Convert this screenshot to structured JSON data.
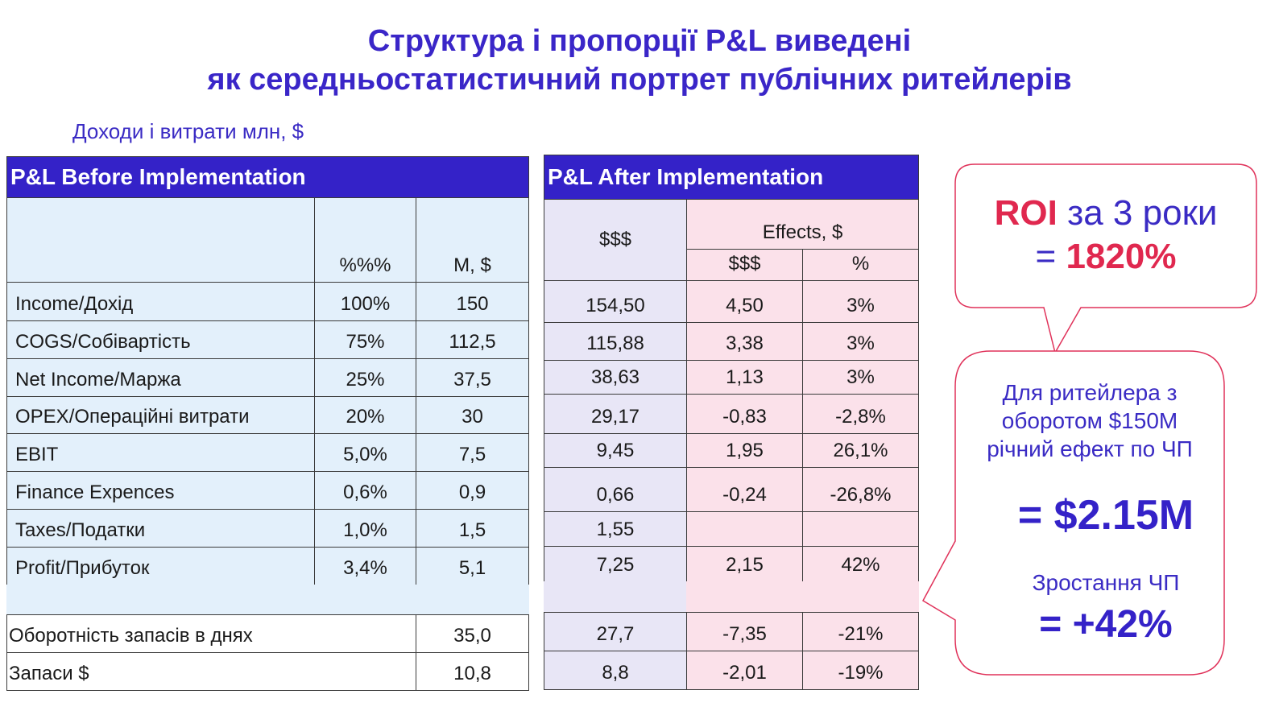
{
  "title": [
    "Структура і пропорції P&L виведені",
    "як середньостатистичний портрет публічних ритейлерів"
  ],
  "subtitle": "Доходи і витрати млн, $",
  "before": {
    "title": "P&L Before Implementation",
    "headers": [
      "%%%",
      "M, $"
    ],
    "rows": [
      [
        "Income/Дохід",
        "100%",
        "150"
      ],
      [
        "COGS/Собівартість",
        "75%",
        "112,5"
      ],
      [
        "Net Income/Маржа",
        "25%",
        "37,5"
      ],
      [
        "OPEX/Операційні витрати",
        "20%",
        "30"
      ],
      [
        "EBIT",
        "5,0%",
        "7,5"
      ],
      [
        "Finance Expences",
        "0,6%",
        "0,9"
      ],
      [
        "Taxes/Податки",
        "1,0%",
        "1,5"
      ],
      [
        "Profit/Прибуток",
        "3,4%",
        "5,1"
      ]
    ],
    "extra_rows": [
      [
        "Оборотність запасів в днях",
        "35,0"
      ],
      [
        "Запаси $",
        "10,8"
      ]
    ]
  },
  "after": {
    "title": "P&L After Implementation",
    "header_main": "$$$",
    "header_effects": "Effects, $",
    "headers": [
      "$$$",
      "%"
    ],
    "rows": [
      [
        "154,50",
        "4,50",
        "3%"
      ],
      [
        "115,88",
        "3,38",
        "3%"
      ],
      [
        "38,63",
        "1,13",
        "3%"
      ],
      [
        "29,17",
        "-0,83",
        "-2,8%"
      ],
      [
        "9,45",
        "1,95",
        "26,1%"
      ],
      [
        "0,66",
        "-0,24",
        "-26,8%"
      ],
      [
        "1,55"
      ],
      [
        "7,25",
        "2,15",
        "42%"
      ]
    ],
    "extra_rows": [
      [
        "27,7",
        "-7,35",
        "-21%"
      ],
      [
        "8,8",
        "-2,01",
        "-19%"
      ]
    ]
  },
  "roi": {
    "label": "ROI",
    "period": "за 3 роки",
    "eq": "=",
    "value": "1820%"
  },
  "effect": {
    "text": "Для ритейлера з оборотом $150M річний ефект по ЧП",
    "value": "= $2.15M",
    "growth_label": "Зростання ЧП",
    "growth_value": "= +42%"
  }
}
